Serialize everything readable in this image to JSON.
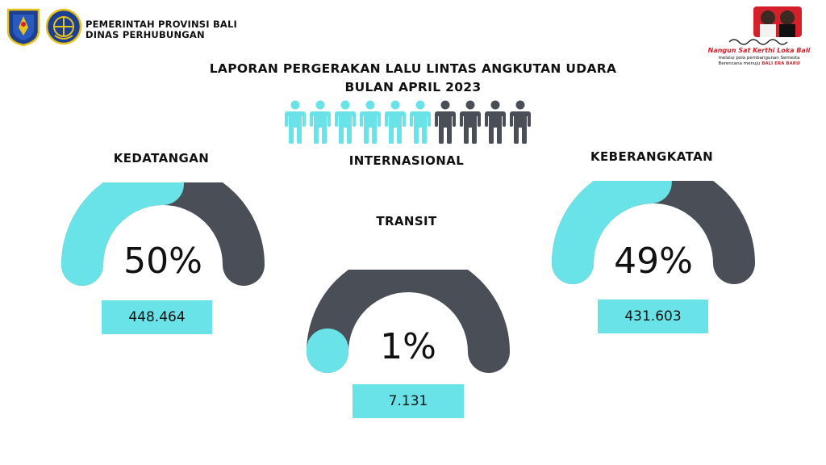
{
  "header": {
    "line1": "PEMERINTAH PROVINSI BALI",
    "line2": "DINAS PERHUBUNGAN"
  },
  "report": {
    "title_line1": "LAPORAN PERGERAKAN LALU LINTAS ANGKUTAN UDARA",
    "title_line2": "BULAN APRIL 2023",
    "category": "INTERNASIONAL"
  },
  "people_icons": {
    "highlighted": 6,
    "total": 10,
    "icon": "person-icon"
  },
  "brand_logo": {
    "motto": "Nangun Sat Kerthi Loka Bali",
    "tagline_prefix": "melalui pola pembangunan Semesta Berencana menuju",
    "tagline_highlight": "BALI ERA BARU"
  },
  "colors": {
    "accent": "#6ae3e8",
    "track": "#4a4f57",
    "motto": "#d4202a"
  },
  "chart_data": [
    {
      "type": "gauge",
      "title": "KEDATANGAN",
      "value_percent": 50,
      "percent_label": "50%",
      "count_label": "448.464"
    },
    {
      "type": "gauge",
      "title": "TRANSIT",
      "value_percent": 1,
      "percent_label": "1%",
      "count_label": "7.131"
    },
    {
      "type": "gauge",
      "title": "KEBERANGKATAN",
      "value_percent": 49,
      "percent_label": "49%",
      "count_label": "431.603"
    }
  ]
}
